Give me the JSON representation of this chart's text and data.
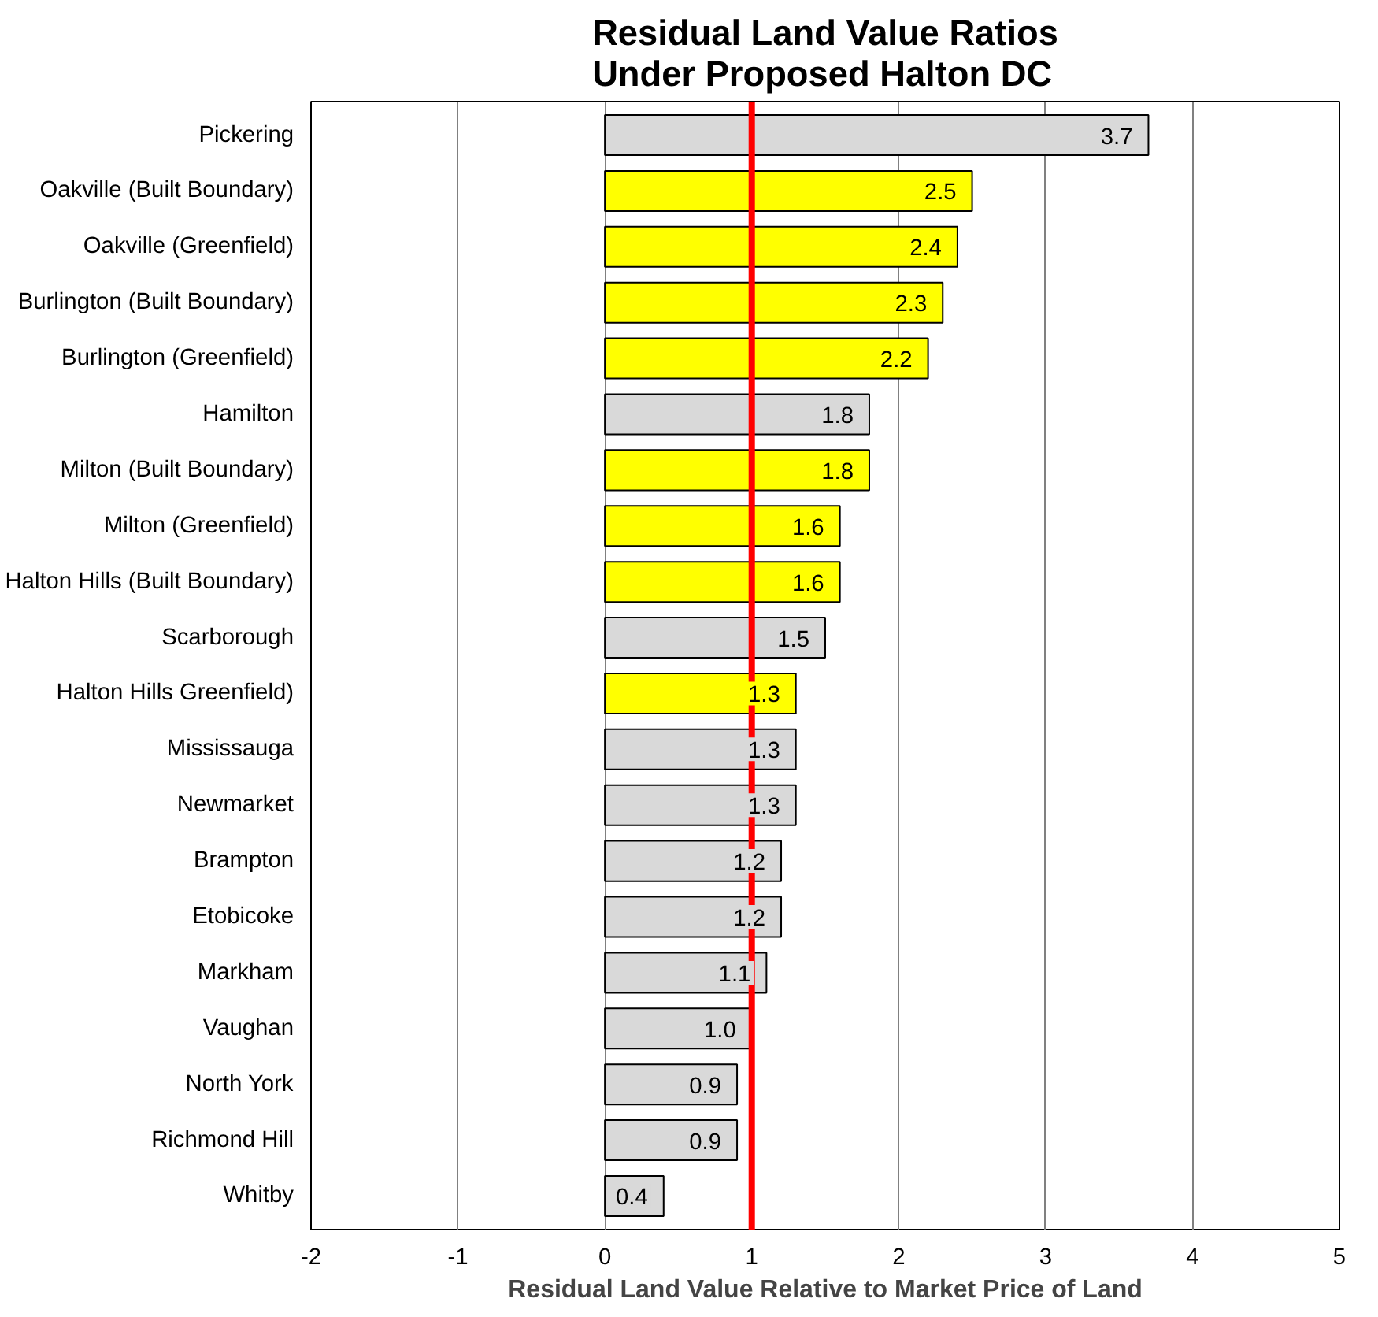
{
  "chart_data": {
    "type": "bar",
    "orientation": "horizontal",
    "title": "Residual Land Value Ratios\nUnder Proposed Halton DC",
    "xlabel": "Residual Land Value Relative to Market Price of Land",
    "categories": [
      "Pickering",
      "Oakville (Built Boundary)",
      "Oakville (Greenfield)",
      "Burlington (Built Boundary)",
      "Burlington (Greenfield)",
      "Hamilton",
      "Milton (Built Boundary)",
      "Milton (Greenfield)",
      "Halton Hills (Built Boundary)",
      "Scarborough",
      "Halton Hills Greenfield)",
      "Mississauga",
      "Newmarket",
      "Brampton",
      "Etobicoke",
      "Markham",
      "Vaughan",
      "North York",
      "Richmond Hill",
      "Whitby"
    ],
    "values": [
      3.7,
      2.5,
      2.4,
      2.3,
      2.2,
      1.8,
      1.8,
      1.6,
      1.6,
      1.5,
      1.3,
      1.3,
      1.3,
      1.2,
      1.2,
      1.1,
      1.0,
      0.9,
      0.9,
      0.4
    ],
    "colors": [
      "#d9d9d9",
      "#ffff00",
      "#ffff00",
      "#ffff00",
      "#ffff00",
      "#d9d9d9",
      "#ffff00",
      "#ffff00",
      "#ffff00",
      "#d9d9d9",
      "#ffff00",
      "#d9d9d9",
      "#d9d9d9",
      "#d9d9d9",
      "#d9d9d9",
      "#d9d9d9",
      "#d9d9d9",
      "#d9d9d9",
      "#d9d9d9",
      "#d9d9d9"
    ],
    "value_labels": [
      "3.7",
      "2.5",
      "2.4",
      "2.3",
      "2.2",
      "1.8",
      "1.8",
      "1.6",
      "1.6",
      "1.5",
      "1.3",
      "1.3",
      "1.3",
      "1.2",
      "1.2",
      "1.1",
      "1.0",
      "0.9",
      "0.9",
      "0.4"
    ],
    "xlim": [
      -2,
      5
    ],
    "xticks": [
      -2,
      -1,
      0,
      1,
      2,
      3,
      4,
      5
    ],
    "grid": "x",
    "ref_lines": [
      {
        "axis": "x",
        "value": 1,
        "color": "#ff0000",
        "line_style": "solid"
      }
    ]
  }
}
